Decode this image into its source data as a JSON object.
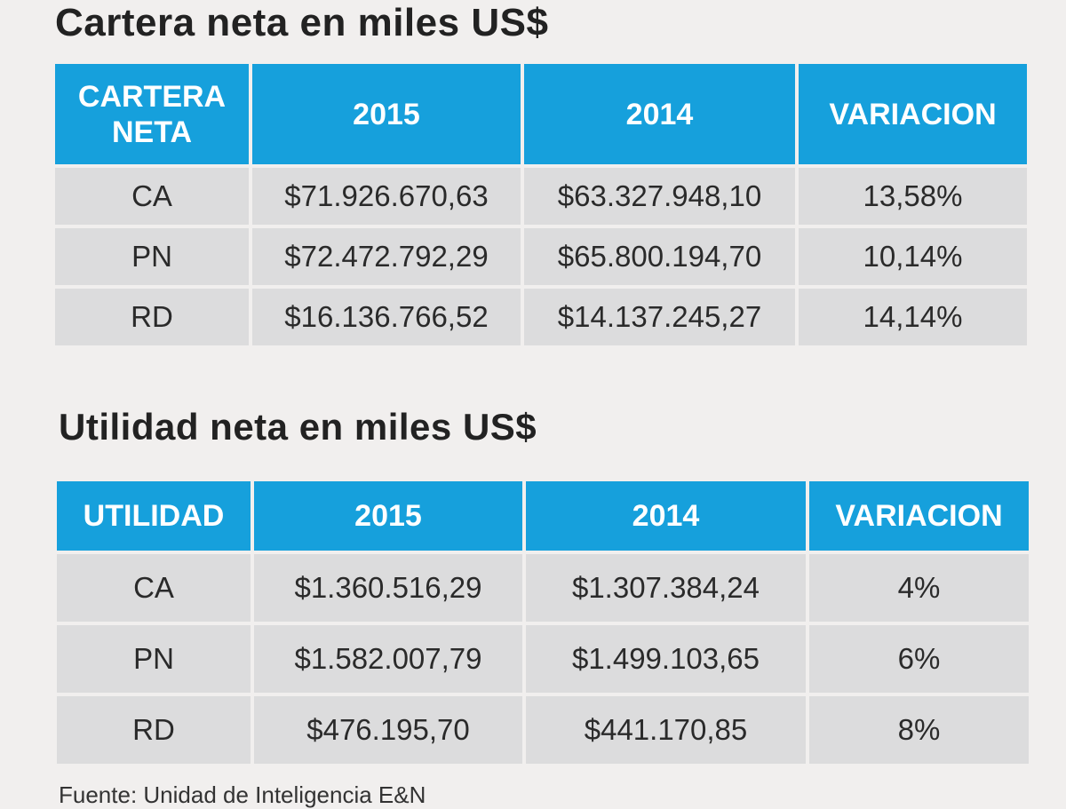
{
  "cartera": {
    "title": "Cartera neta en miles US$",
    "headers": [
      "CARTERA NETA",
      "2015",
      "2014",
      "VARIACION"
    ],
    "rows": [
      [
        "CA",
        "$71.926.670,63",
        "$63.327.948,10",
        "13,58%"
      ],
      [
        "PN",
        "$72.472.792,29",
        "$65.800.194,70",
        "10,14%"
      ],
      [
        "RD",
        "$16.136.766,52",
        "$14.137.245,27",
        "14,14%"
      ]
    ]
  },
  "utilidad": {
    "title": "Utilidad neta en miles US$",
    "headers": [
      "UTILIDAD",
      "2015",
      "2014",
      "VARIACION"
    ],
    "rows": [
      [
        "CA",
        "$1.360.516,29",
        "$1.307.384,24",
        "4%"
      ],
      [
        "PN",
        "$1.582.007,79",
        "$1.499.103,65",
        "6%"
      ],
      [
        "RD",
        "$476.195,70",
        "$441.170,85",
        "8%"
      ]
    ]
  },
  "source": "Fuente: Unidad de Inteligencia E&N",
  "colors": {
    "header_bg": "#16a0dc",
    "header_text": "#ffffff",
    "cell_bg": "#dcdcdd",
    "page_bg": "#f1efee"
  }
}
